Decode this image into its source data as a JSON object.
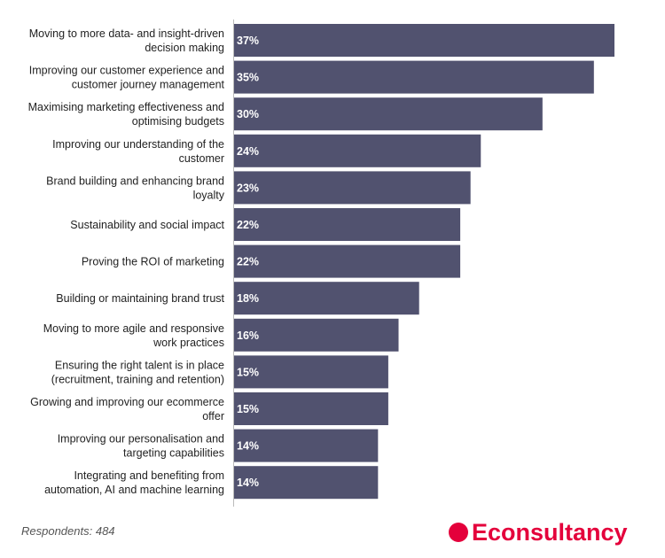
{
  "chart_data": {
    "type": "bar",
    "orientation": "horizontal",
    "categories": [
      [
        "Moving to more data- and insight-driven",
        "decision making"
      ],
      [
        "Improving our customer experience and",
        "customer journey management"
      ],
      [
        "Maximising marketing effectiveness and",
        "optimising budgets"
      ],
      [
        "Improving our understanding of the",
        "customer"
      ],
      [
        "Brand building and enhancing brand",
        "loyalty"
      ],
      [
        "Sustainability and social impact"
      ],
      [
        "Proving the ROI of marketing"
      ],
      [
        "Building or maintaining brand trust"
      ],
      [
        "Moving to more agile and responsive",
        "work practices"
      ],
      [
        "Ensuring the right talent is in place",
        "(recruitment, training and retention)"
      ],
      [
        "Growing and improving our ecommerce",
        "offer"
      ],
      [
        "Improving our personalisation and",
        "targeting capabilities"
      ],
      [
        "Integrating and benefiting from",
        "automation, AI and machine learning"
      ]
    ],
    "values": [
      37,
      35,
      30,
      24,
      23,
      22,
      22,
      18,
      16,
      15,
      15,
      14,
      14
    ],
    "value_labels": [
      "37%",
      "35%",
      "30%",
      "24%",
      "23%",
      "22%",
      "22%",
      "18%",
      "16%",
      "15%",
      "15%",
      "14%",
      "14%"
    ],
    "xlim": [
      0,
      37
    ],
    "bar_color": "#51526f",
    "value_label_color": "#ffffff",
    "grid": false,
    "legend": "none"
  },
  "footer": {
    "respondents": "Respondents: 484",
    "brand": "Econsultancy",
    "brand_color": "#e4003b"
  }
}
